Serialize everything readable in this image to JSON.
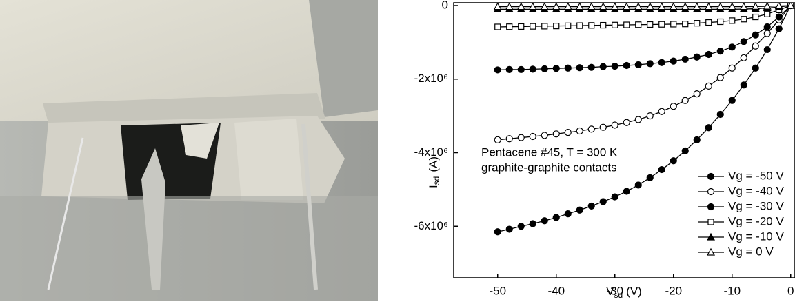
{
  "chart_data": {
    "type": "line",
    "x_label": {
      "main": "V",
      "sub": "sd",
      "unit": "(V)"
    },
    "y_label": {
      "main": "I",
      "sub": "sd",
      "unit": "(A)"
    },
    "annotations": [
      "Pentacene #45, T = 300 K",
      "graphite-graphite contacts"
    ],
    "x": [
      -50,
      -48,
      -46,
      -44,
      -42,
      -40,
      -38,
      -36,
      -34,
      -32,
      -30,
      -28,
      -26,
      -24,
      -22,
      -20,
      -18,
      -16,
      -14,
      -12,
      -10,
      -8,
      -6,
      -4,
      -2,
      0
    ],
    "xlim": [
      -57.5,
      0.5
    ],
    "xticks": [
      -50,
      -40,
      -30,
      -20,
      -10,
      0
    ],
    "ylim": [
      -7400000,
      75000
    ],
    "yticks": [
      {
        "value": -6000000,
        "label": "-6x10⁶"
      },
      {
        "value": -4000000,
        "label": "-4x10⁶"
      },
      {
        "value": -2000000,
        "label": "-2x10⁶"
      },
      0
    ],
    "legend": "lower right",
    "series": [
      {
        "name": "Vg = -50 V",
        "color": "#000000",
        "marker": "circle-filled",
        "values": [
          -6150000,
          -6080000,
          -6000000,
          -5930000,
          -5850000,
          -5760000,
          -5660000,
          -5560000,
          -5450000,
          -5330000,
          -5200000,
          -5050000,
          -4880000,
          -4680000,
          -4460000,
          -4220000,
          -3950000,
          -3650000,
          -3320000,
          -2960000,
          -2580000,
          -2160000,
          -1700000,
          -1200000,
          -630000,
          0
        ]
      },
      {
        "name": "Vg = -40 V",
        "color": "#000000",
        "marker": "circle-open",
        "values": [
          -3650000,
          -3620000,
          -3590000,
          -3560000,
          -3530000,
          -3490000,
          -3450000,
          -3410000,
          -3360000,
          -3310000,
          -3250000,
          -3180000,
          -3100000,
          -3000000,
          -2880000,
          -2740000,
          -2580000,
          -2400000,
          -2190000,
          -1960000,
          -1700000,
          -1420000,
          -1100000,
          -760000,
          -390000,
          0
        ]
      },
      {
        "name": "Vg = -30 V",
        "color": "#000000",
        "marker": "circle-filled",
        "values": [
          -1750000,
          -1740000,
          -1740000,
          -1730000,
          -1720000,
          -1710000,
          -1700000,
          -1690000,
          -1680000,
          -1660000,
          -1650000,
          -1630000,
          -1610000,
          -1580000,
          -1550000,
          -1510000,
          -1460000,
          -1400000,
          -1330000,
          -1240000,
          -1130000,
          -980000,
          -800000,
          -580000,
          -310000,
          0
        ]
      },
      {
        "name": "Vg = -20 V",
        "color": "#000000",
        "marker": "square-open",
        "values": [
          -580000,
          -575000,
          -570000,
          -565000,
          -560000,
          -555000,
          -550000,
          -545000,
          -540000,
          -535000,
          -530000,
          -525000,
          -520000,
          -515000,
          -510000,
          -505000,
          -500000,
          -480000,
          -460000,
          -440000,
          -410000,
          -370000,
          -310000,
          -230000,
          -120000,
          0
        ]
      },
      {
        "name": "Vg = -10 V",
        "color": "#000000",
        "marker": "triangle-filled",
        "values": [
          -100000,
          -100000,
          -100000,
          -100000,
          -100000,
          -100000,
          -100000,
          -100000,
          -100000,
          -100000,
          -100000,
          -100000,
          -100000,
          -100000,
          -100000,
          -100000,
          -100000,
          -100000,
          -100000,
          -100000,
          -100000,
          -95000,
          -85000,
          -65000,
          -40000,
          0
        ]
      },
      {
        "name": "Vg = 0 V",
        "color": "#000000",
        "marker": "triangle-open",
        "values": [
          -30000,
          -30000,
          -30000,
          -30000,
          -30000,
          -30000,
          -30000,
          -30000,
          -30000,
          -30000,
          -30000,
          -30000,
          -30000,
          -30000,
          -30000,
          -30000,
          -30000,
          -30000,
          -30000,
          -30000,
          -30000,
          -30000,
          -25000,
          -20000,
          -10000,
          0
        ]
      }
    ]
  }
}
